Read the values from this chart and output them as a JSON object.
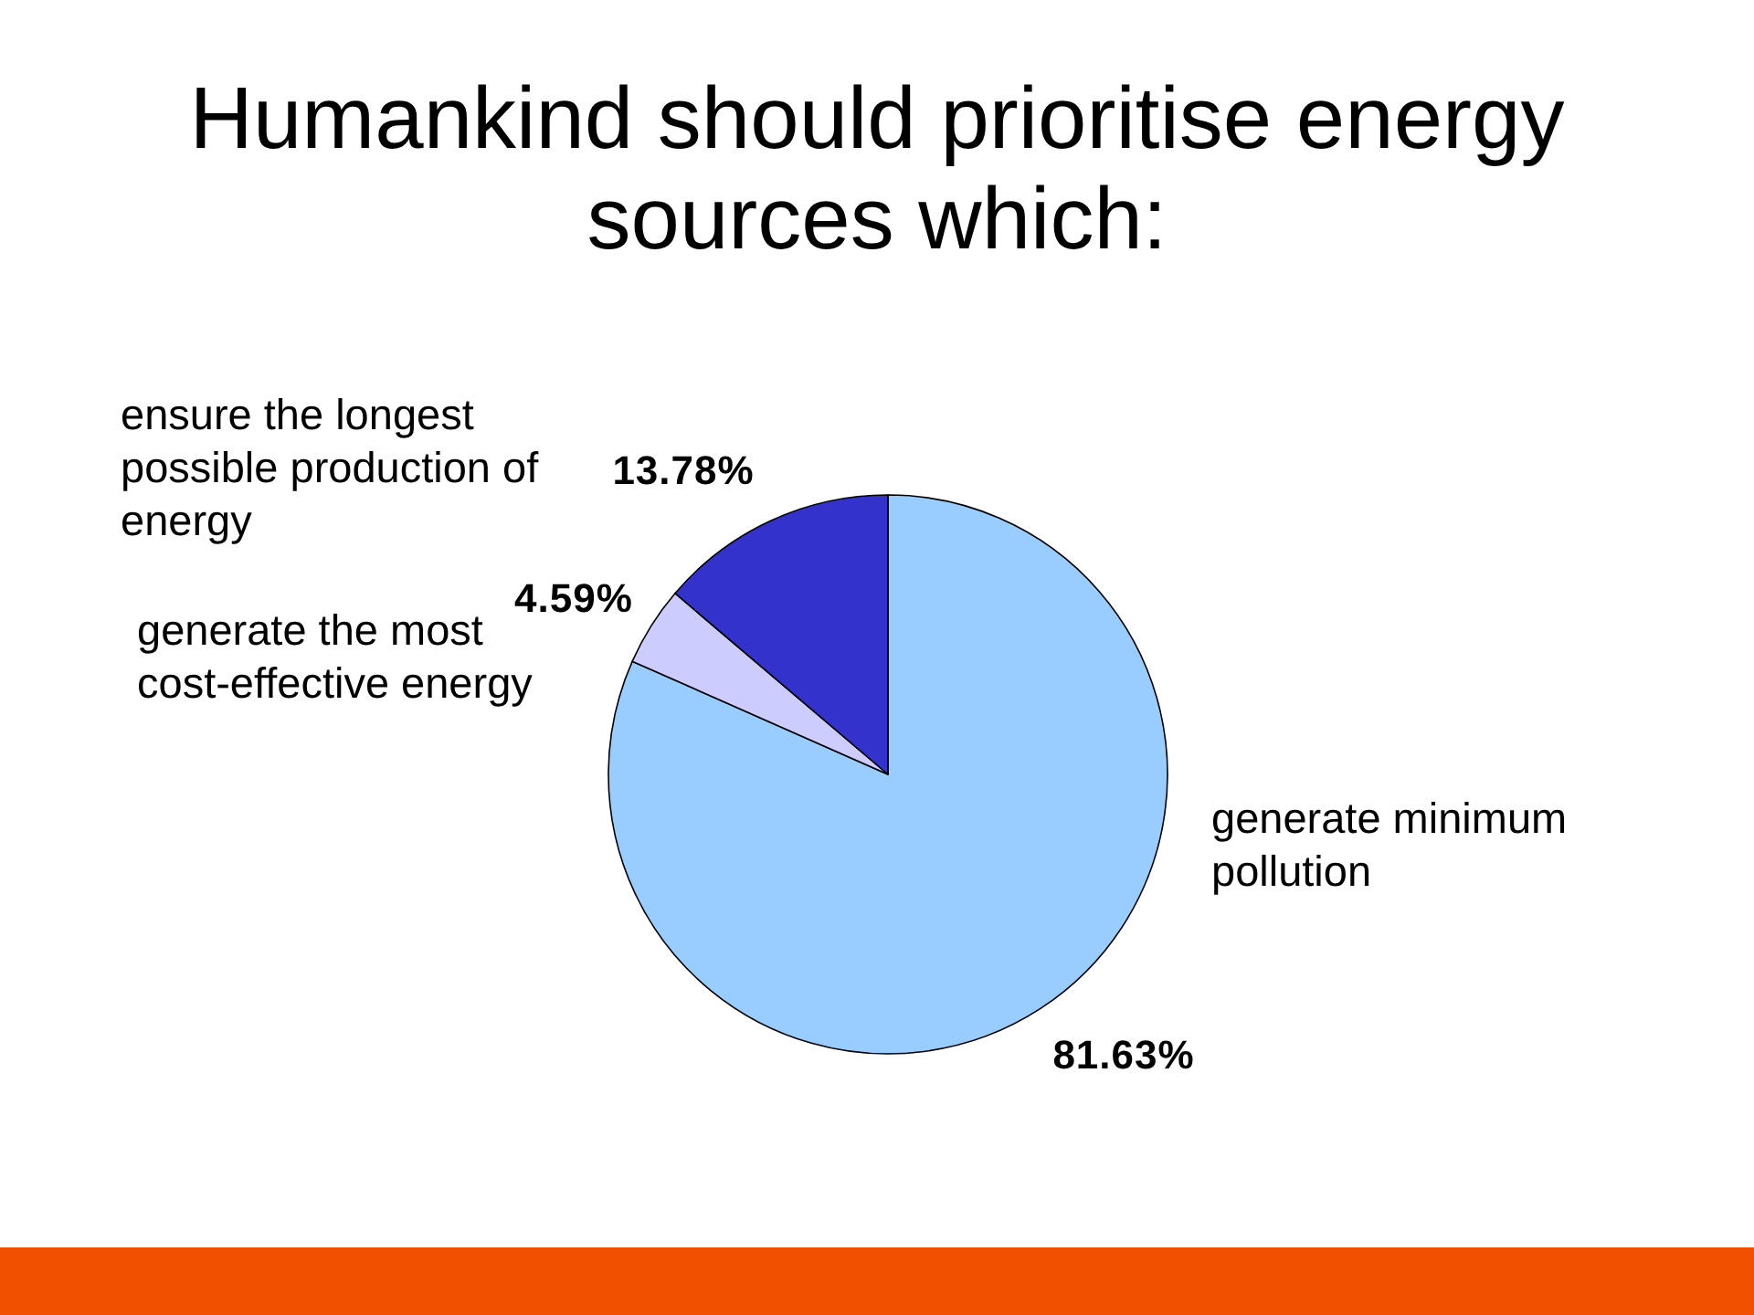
{
  "chart_data": {
    "type": "pie",
    "title": "Humankind should prioritise energy sources which:",
    "categories": [
      "generate minimum pollution",
      "generate the most cost-effective energy",
      "ensure the longest possible production of energy"
    ],
    "values": [
      81.63,
      4.59,
      13.78
    ],
    "colors": [
      "#99ccff",
      "#ccccff",
      "#3333cc"
    ],
    "value_labels": [
      "81.63%",
      "4.59%",
      "13.78%"
    ]
  }
}
